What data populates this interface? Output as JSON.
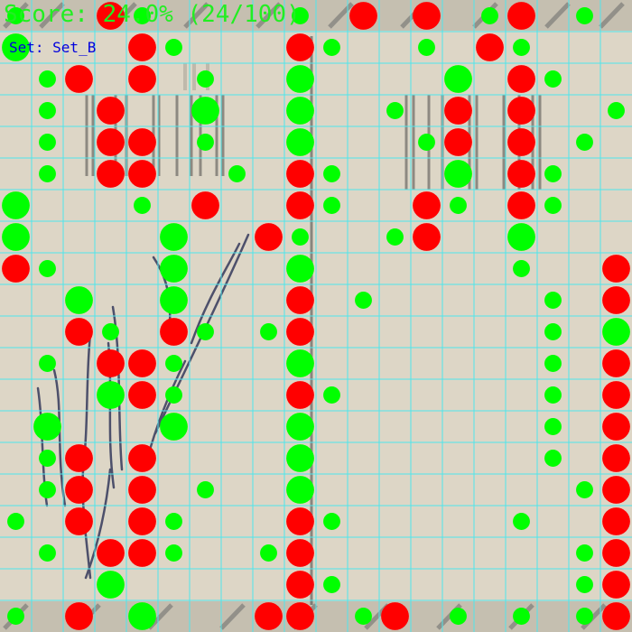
{
  "hud": {
    "score_label": "Score: 24.0% (24/100)",
    "set_label": "Set: Set_B"
  },
  "grid": {
    "cols": 20,
    "rows": 20
  },
  "colors": {
    "hit": "#00ff00",
    "miss": "#ff0000",
    "grid_line": "#4ee6ec",
    "background": "#ddd6c6",
    "ink": "#2a2f55"
  },
  "markers": [
    {
      "c": 0,
      "r": 0,
      "type": "hit",
      "big": false
    },
    {
      "c": 3,
      "r": 0,
      "type": "miss",
      "big": true
    },
    {
      "c": 4,
      "r": 0,
      "type": "hit",
      "big": false
    },
    {
      "c": 9,
      "r": 0,
      "type": "hit",
      "big": false
    },
    {
      "c": 11,
      "r": 0,
      "type": "miss",
      "big": true
    },
    {
      "c": 13,
      "r": 0,
      "type": "miss",
      "big": true
    },
    {
      "c": 15,
      "r": 0,
      "type": "hit",
      "big": false
    },
    {
      "c": 16,
      "r": 0,
      "type": "miss",
      "big": true
    },
    {
      "c": 18,
      "r": 0,
      "type": "hit",
      "big": false
    },
    {
      "c": 0,
      "r": 1,
      "type": "hit",
      "big": true
    },
    {
      "c": 4,
      "r": 1,
      "type": "miss",
      "big": true
    },
    {
      "c": 5,
      "r": 1,
      "type": "hit",
      "big": false
    },
    {
      "c": 9,
      "r": 1,
      "type": "miss",
      "big": true
    },
    {
      "c": 10,
      "r": 1,
      "type": "hit",
      "big": false
    },
    {
      "c": 13,
      "r": 1,
      "type": "hit",
      "big": false
    },
    {
      "c": 15,
      "r": 1,
      "type": "miss",
      "big": true
    },
    {
      "c": 16,
      "r": 1,
      "type": "hit",
      "big": false
    },
    {
      "c": 1,
      "r": 2,
      "type": "hit",
      "big": false
    },
    {
      "c": 2,
      "r": 2,
      "type": "miss",
      "big": true
    },
    {
      "c": 4,
      "r": 2,
      "type": "miss",
      "big": true
    },
    {
      "c": 6,
      "r": 2,
      "type": "hit",
      "big": false
    },
    {
      "c": 9,
      "r": 2,
      "type": "hit",
      "big": true
    },
    {
      "c": 14,
      "r": 2,
      "type": "hit",
      "big": true
    },
    {
      "c": 16,
      "r": 2,
      "type": "miss",
      "big": true
    },
    {
      "c": 17,
      "r": 2,
      "type": "hit",
      "big": false
    },
    {
      "c": 1,
      "r": 3,
      "type": "hit",
      "big": false
    },
    {
      "c": 3,
      "r": 3,
      "type": "miss",
      "big": true
    },
    {
      "c": 6,
      "r": 3,
      "type": "hit",
      "big": true
    },
    {
      "c": 9,
      "r": 3,
      "type": "hit",
      "big": true
    },
    {
      "c": 12,
      "r": 3,
      "type": "hit",
      "big": false
    },
    {
      "c": 14,
      "r": 3,
      "type": "miss",
      "big": true
    },
    {
      "c": 16,
      "r": 3,
      "type": "miss",
      "big": true
    },
    {
      "c": 19,
      "r": 3,
      "type": "hit",
      "big": false
    },
    {
      "c": 1,
      "r": 4,
      "type": "hit",
      "big": false
    },
    {
      "c": 3,
      "r": 4,
      "type": "miss",
      "big": true
    },
    {
      "c": 4,
      "r": 4,
      "type": "miss",
      "big": true
    },
    {
      "c": 6,
      "r": 4,
      "type": "hit",
      "big": false
    },
    {
      "c": 9,
      "r": 4,
      "type": "hit",
      "big": true
    },
    {
      "c": 13,
      "r": 4,
      "type": "hit",
      "big": false
    },
    {
      "c": 14,
      "r": 4,
      "type": "miss",
      "big": true
    },
    {
      "c": 16,
      "r": 4,
      "type": "miss",
      "big": true
    },
    {
      "c": 18,
      "r": 4,
      "type": "hit",
      "big": false
    },
    {
      "c": 1,
      "r": 5,
      "type": "hit",
      "big": false
    },
    {
      "c": 3,
      "r": 5,
      "type": "miss",
      "big": true
    },
    {
      "c": 4,
      "r": 5,
      "type": "miss",
      "big": true
    },
    {
      "c": 7,
      "r": 5,
      "type": "hit",
      "big": false
    },
    {
      "c": 9,
      "r": 5,
      "type": "miss",
      "big": true
    },
    {
      "c": 10,
      "r": 5,
      "type": "hit",
      "big": false
    },
    {
      "c": 14,
      "r": 5,
      "type": "hit",
      "big": true
    },
    {
      "c": 16,
      "r": 5,
      "type": "miss",
      "big": true
    },
    {
      "c": 17,
      "r": 5,
      "type": "hit",
      "big": false
    },
    {
      "c": 0,
      "r": 6,
      "type": "hit",
      "big": true
    },
    {
      "c": 4,
      "r": 6,
      "type": "hit",
      "big": false
    },
    {
      "c": 6,
      "r": 6,
      "type": "miss",
      "big": true
    },
    {
      "c": 9,
      "r": 6,
      "type": "miss",
      "big": true
    },
    {
      "c": 10,
      "r": 6,
      "type": "hit",
      "big": false
    },
    {
      "c": 13,
      "r": 6,
      "type": "miss",
      "big": true
    },
    {
      "c": 14,
      "r": 6,
      "type": "hit",
      "big": false
    },
    {
      "c": 16,
      "r": 6,
      "type": "miss",
      "big": true
    },
    {
      "c": 17,
      "r": 6,
      "type": "hit",
      "big": false
    },
    {
      "c": 0,
      "r": 7,
      "type": "hit",
      "big": true
    },
    {
      "c": 5,
      "r": 7,
      "type": "hit",
      "big": true
    },
    {
      "c": 8,
      "r": 7,
      "type": "miss",
      "big": true
    },
    {
      "c": 9,
      "r": 7,
      "type": "hit",
      "big": false
    },
    {
      "c": 12,
      "r": 7,
      "type": "hit",
      "big": false
    },
    {
      "c": 13,
      "r": 7,
      "type": "miss",
      "big": true
    },
    {
      "c": 16,
      "r": 7,
      "type": "hit",
      "big": true
    },
    {
      "c": 0,
      "r": 8,
      "type": "miss",
      "big": true
    },
    {
      "c": 1,
      "r": 8,
      "type": "hit",
      "big": false
    },
    {
      "c": 5,
      "r": 8,
      "type": "hit",
      "big": true
    },
    {
      "c": 9,
      "r": 8,
      "type": "hit",
      "big": true
    },
    {
      "c": 16,
      "r": 8,
      "type": "hit",
      "big": false
    },
    {
      "c": 19,
      "r": 8,
      "type": "miss",
      "big": true
    },
    {
      "c": 2,
      "r": 9,
      "type": "hit",
      "big": true
    },
    {
      "c": 5,
      "r": 9,
      "type": "hit",
      "big": true
    },
    {
      "c": 9,
      "r": 9,
      "type": "miss",
      "big": true
    },
    {
      "c": 11,
      "r": 9,
      "type": "hit",
      "big": false
    },
    {
      "c": 17,
      "r": 9,
      "type": "hit",
      "big": false
    },
    {
      "c": 19,
      "r": 9,
      "type": "miss",
      "big": true
    },
    {
      "c": 2,
      "r": 10,
      "type": "miss",
      "big": true
    },
    {
      "c": 3,
      "r": 10,
      "type": "hit",
      "big": false
    },
    {
      "c": 5,
      "r": 10,
      "type": "miss",
      "big": true
    },
    {
      "c": 6,
      "r": 10,
      "type": "hit",
      "big": false
    },
    {
      "c": 8,
      "r": 10,
      "type": "hit",
      "big": false
    },
    {
      "c": 9,
      "r": 10,
      "type": "miss",
      "big": true
    },
    {
      "c": 17,
      "r": 10,
      "type": "hit",
      "big": false
    },
    {
      "c": 19,
      "r": 10,
      "type": "hit",
      "big": true
    },
    {
      "c": 1,
      "r": 11,
      "type": "hit",
      "big": false
    },
    {
      "c": 3,
      "r": 11,
      "type": "miss",
      "big": true
    },
    {
      "c": 4,
      "r": 11,
      "type": "miss",
      "big": true
    },
    {
      "c": 5,
      "r": 11,
      "type": "hit",
      "big": false
    },
    {
      "c": 9,
      "r": 11,
      "type": "hit",
      "big": true
    },
    {
      "c": 17,
      "r": 11,
      "type": "hit",
      "big": false
    },
    {
      "c": 19,
      "r": 11,
      "type": "miss",
      "big": true
    },
    {
      "c": 3,
      "r": 12,
      "type": "hit",
      "big": true
    },
    {
      "c": 4,
      "r": 12,
      "type": "miss",
      "big": true
    },
    {
      "c": 5,
      "r": 12,
      "type": "hit",
      "big": false
    },
    {
      "c": 9,
      "r": 12,
      "type": "miss",
      "big": true
    },
    {
      "c": 10,
      "r": 12,
      "type": "hit",
      "big": false
    },
    {
      "c": 17,
      "r": 12,
      "type": "hit",
      "big": false
    },
    {
      "c": 19,
      "r": 12,
      "type": "miss",
      "big": true
    },
    {
      "c": 1,
      "r": 13,
      "type": "hit",
      "big": true
    },
    {
      "c": 5,
      "r": 13,
      "type": "hit",
      "big": true
    },
    {
      "c": 9,
      "r": 13,
      "type": "hit",
      "big": true
    },
    {
      "c": 17,
      "r": 13,
      "type": "hit",
      "big": false
    },
    {
      "c": 19,
      "r": 13,
      "type": "miss",
      "big": true
    },
    {
      "c": 1,
      "r": 14,
      "type": "hit",
      "big": false
    },
    {
      "c": 2,
      "r": 14,
      "type": "miss",
      "big": true
    },
    {
      "c": 4,
      "r": 14,
      "type": "miss",
      "big": true
    },
    {
      "c": 9,
      "r": 14,
      "type": "hit",
      "big": true
    },
    {
      "c": 17,
      "r": 14,
      "type": "hit",
      "big": false
    },
    {
      "c": 19,
      "r": 14,
      "type": "miss",
      "big": true
    },
    {
      "c": 1,
      "r": 15,
      "type": "hit",
      "big": false
    },
    {
      "c": 2,
      "r": 15,
      "type": "miss",
      "big": true
    },
    {
      "c": 4,
      "r": 15,
      "type": "miss",
      "big": true
    },
    {
      "c": 6,
      "r": 15,
      "type": "hit",
      "big": false
    },
    {
      "c": 9,
      "r": 15,
      "type": "hit",
      "big": true
    },
    {
      "c": 18,
      "r": 15,
      "type": "hit",
      "big": false
    },
    {
      "c": 19,
      "r": 15,
      "type": "miss",
      "big": true
    },
    {
      "c": 0,
      "r": 16,
      "type": "hit",
      "big": false
    },
    {
      "c": 2,
      "r": 16,
      "type": "miss",
      "big": true
    },
    {
      "c": 4,
      "r": 16,
      "type": "miss",
      "big": true
    },
    {
      "c": 5,
      "r": 16,
      "type": "hit",
      "big": false
    },
    {
      "c": 9,
      "r": 16,
      "type": "miss",
      "big": true
    },
    {
      "c": 10,
      "r": 16,
      "type": "hit",
      "big": false
    },
    {
      "c": 16,
      "r": 16,
      "type": "hit",
      "big": false
    },
    {
      "c": 19,
      "r": 16,
      "type": "miss",
      "big": true
    },
    {
      "c": 1,
      "r": 17,
      "type": "hit",
      "big": false
    },
    {
      "c": 3,
      "r": 17,
      "type": "miss",
      "big": true
    },
    {
      "c": 4,
      "r": 17,
      "type": "miss",
      "big": true
    },
    {
      "c": 5,
      "r": 17,
      "type": "hit",
      "big": false
    },
    {
      "c": 8,
      "r": 17,
      "type": "hit",
      "big": false
    },
    {
      "c": 9,
      "r": 17,
      "type": "miss",
      "big": true
    },
    {
      "c": 18,
      "r": 17,
      "type": "hit",
      "big": false
    },
    {
      "c": 19,
      "r": 17,
      "type": "miss",
      "big": true
    },
    {
      "c": 3,
      "r": 18,
      "type": "hit",
      "big": true
    },
    {
      "c": 9,
      "r": 18,
      "type": "miss",
      "big": true
    },
    {
      "c": 10,
      "r": 18,
      "type": "hit",
      "big": false
    },
    {
      "c": 18,
      "r": 18,
      "type": "hit",
      "big": false
    },
    {
      "c": 19,
      "r": 18,
      "type": "miss",
      "big": true
    },
    {
      "c": 0,
      "r": 19,
      "type": "hit",
      "big": false
    },
    {
      "c": 2,
      "r": 19,
      "type": "miss",
      "big": true
    },
    {
      "c": 4,
      "r": 19,
      "type": "hit",
      "big": true
    },
    {
      "c": 8,
      "r": 19,
      "type": "miss",
      "big": true
    },
    {
      "c": 9,
      "r": 19,
      "type": "miss",
      "big": true
    },
    {
      "c": 11,
      "r": 19,
      "type": "hit",
      "big": false
    },
    {
      "c": 12,
      "r": 19,
      "type": "miss",
      "big": true
    },
    {
      "c": 14,
      "r": 19,
      "type": "hit",
      "big": false
    },
    {
      "c": 16,
      "r": 19,
      "type": "hit",
      "big": false
    },
    {
      "c": 18,
      "r": 19,
      "type": "hit",
      "big": false
    },
    {
      "c": 19,
      "r": 19,
      "type": "miss",
      "big": true
    }
  ]
}
